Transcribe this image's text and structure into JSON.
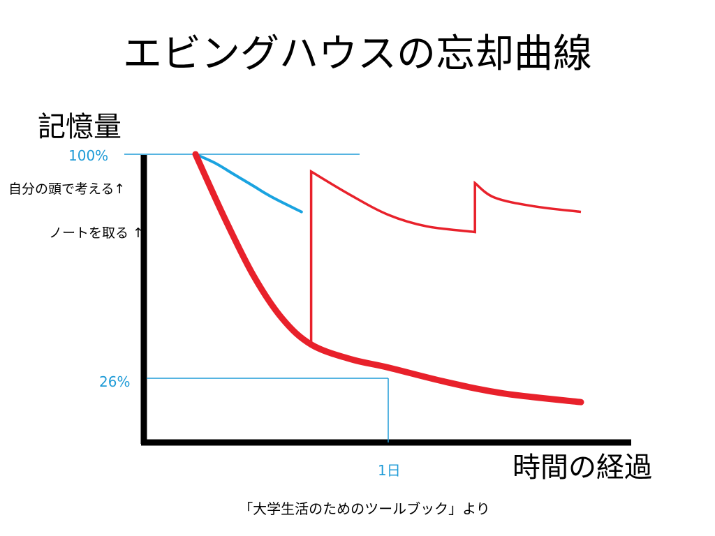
{
  "slide": {
    "title": "エビングハウスの忘却曲線",
    "source": "「大学生活のためのツールブック」より"
  },
  "colors": {
    "axis": "#000000",
    "reference": "#1f9bd7",
    "forgetting": "#e8212b",
    "review": "#e8212b",
    "self_thinking": "#1aa3e0"
  },
  "chart_data": {
    "type": "line",
    "ylabel": "記憶量",
    "xlabel": "時間の経過",
    "y_ticks": [
      {
        "label": "100%",
        "value": 100
      },
      {
        "label": "26%",
        "value": 26
      }
    ],
    "x_ticks": [
      {
        "label": "1日",
        "value": 1
      }
    ],
    "annotations": [
      {
        "text": "自分の頭で考える↑",
        "refers_to": "self_thinking"
      },
      {
        "text": "ノートを取る ↑",
        "refers_to": "forgetting"
      }
    ],
    "series": [
      {
        "key": "forgetting",
        "points": [
          [
            0,
            100
          ],
          [
            0.15,
            78
          ],
          [
            0.3,
            58
          ],
          [
            0.45,
            43
          ],
          [
            0.6,
            34
          ],
          [
            0.8,
            29
          ],
          [
            1,
            26
          ],
          [
            1.3,
            21
          ],
          [
            1.6,
            17
          ],
          [
            2,
            14
          ]
        ]
      },
      {
        "key": "review",
        "points": [
          [
            0.6,
            34
          ],
          [
            0.6,
            94
          ],
          [
            0.8,
            86
          ],
          [
            1,
            79
          ],
          [
            1.2,
            75
          ],
          [
            1.45,
            73
          ],
          [
            1.45,
            90
          ],
          [
            1.55,
            85
          ],
          [
            1.75,
            82
          ],
          [
            2,
            80
          ]
        ]
      },
      {
        "key": "self_thinking",
        "points": [
          [
            0,
            100
          ],
          [
            0.1,
            97
          ],
          [
            0.2,
            93
          ],
          [
            0.3,
            89
          ],
          [
            0.4,
            85
          ],
          [
            0.55,
            80
          ]
        ]
      }
    ]
  }
}
